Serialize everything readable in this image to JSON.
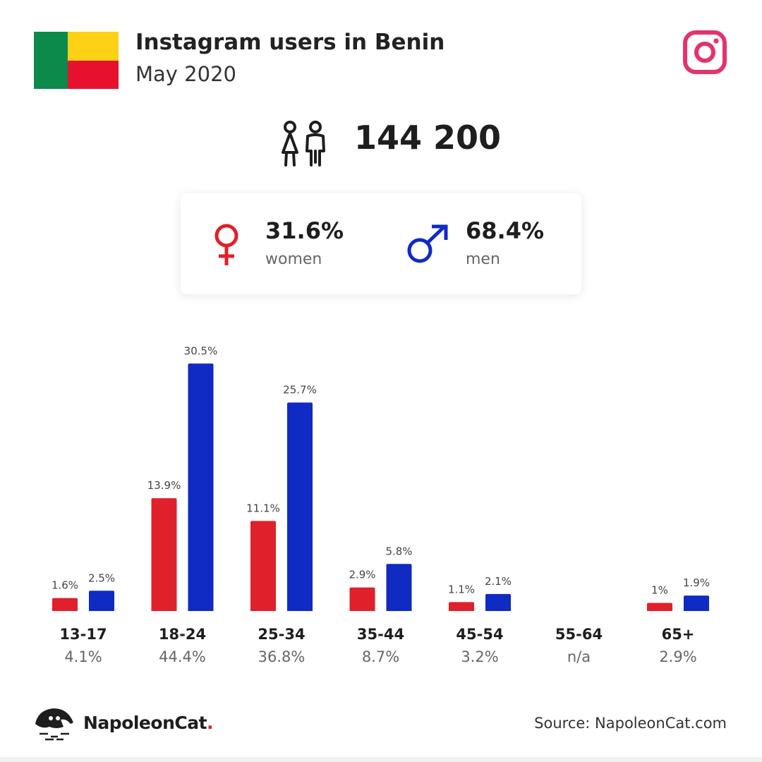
{
  "header": {
    "title": "Instagram users in Benin",
    "subtitle": "May 2020",
    "flag_colors": [
      "#0c8a4b",
      "#fcd116",
      "#e8112d"
    ],
    "instagram_icon": "instagram-icon"
  },
  "total": {
    "icon": "people-icon",
    "value": "144 200"
  },
  "gender": {
    "women": {
      "pct": "31.6%",
      "label": "women",
      "color": "#e0202a",
      "icon": "female-symbol-icon"
    },
    "men": {
      "pct": "68.4%",
      "label": "men",
      "color": "#102ac4",
      "icon": "male-symbol-icon"
    }
  },
  "chart_data": {
    "type": "bar",
    "categories": [
      "13-17",
      "18-24",
      "25-34",
      "35-44",
      "45-54",
      "55-64",
      "65+"
    ],
    "category_totals": [
      "4.1%",
      "44.4%",
      "36.8%",
      "8.7%",
      "3.2%",
      "n/a",
      "2.9%"
    ],
    "series": [
      {
        "key": "women",
        "color": "#e0202a",
        "values": [
          1.6,
          13.9,
          11.1,
          2.9,
          1.1,
          null,
          1.0
        ],
        "labels": [
          "1.6%",
          "13.9%",
          "11.1%",
          "2.9%",
          "1.1%",
          "",
          "1%"
        ]
      },
      {
        "key": "men",
        "color": "#102ac4",
        "values": [
          2.5,
          30.5,
          25.7,
          5.8,
          2.1,
          null,
          1.9
        ],
        "labels": [
          "2.5%",
          "30.5%",
          "25.7%",
          "5.8%",
          "2.1%",
          "",
          "1.9%"
        ]
      }
    ],
    "title": "",
    "xlabel": "",
    "ylabel": "",
    "grid": false,
    "legend": "none"
  },
  "footer": {
    "brand": "NapoleonCat",
    "brand_dot": ".",
    "source": "Source: NapoleonCat.com",
    "logo_icon": "napoleoncat-logo-icon"
  }
}
